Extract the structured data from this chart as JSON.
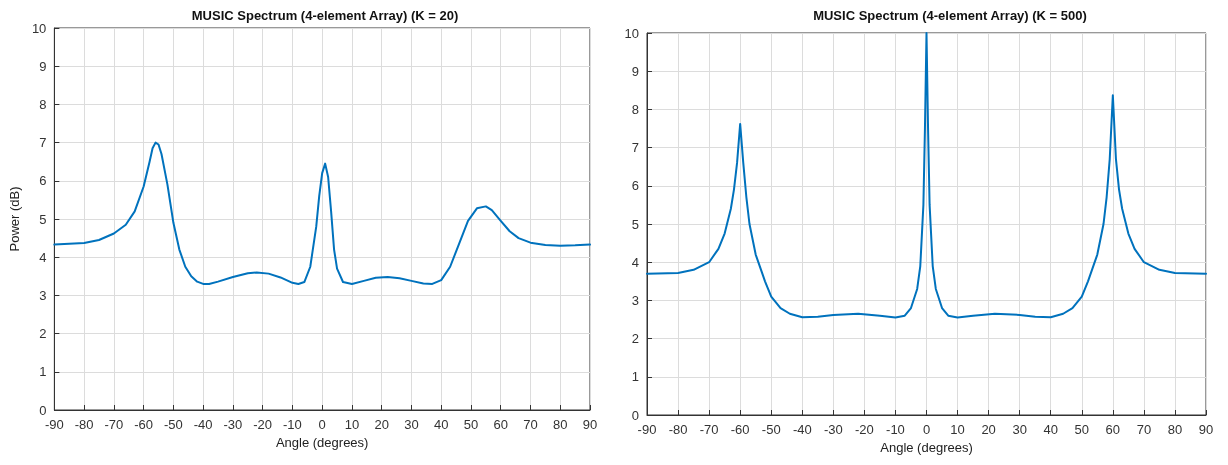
{
  "chart_data": [
    {
      "type": "line",
      "title": "MUSIC Spectrum (4-element Array) (K = 20)",
      "xlabel": "Angle (degrees)",
      "ylabel": "Power (dB)",
      "xlim": [
        -90,
        90
      ],
      "xticks": [
        -90,
        -80,
        -70,
        -60,
        -50,
        -40,
        -30,
        -20,
        -10,
        0,
        10,
        20,
        30,
        40,
        50,
        60,
        70,
        80,
        90
      ],
      "ylim": [
        0,
        10
      ],
      "yticks": [
        0,
        1,
        2,
        3,
        4,
        5,
        6,
        7,
        8,
        9,
        10
      ],
      "grid": true,
      "series": [
        {
          "color": "#0072bd",
          "x": [
            -90,
            -80,
            -75,
            -70,
            -66,
            -63,
            -60,
            -58,
            -57,
            -56,
            -55,
            -54,
            -52,
            -50,
            -48,
            -46,
            -44,
            -42,
            -40,
            -38,
            -35,
            -30,
            -25,
            -22,
            -18,
            -14,
            -10,
            -8,
            -6,
            -4,
            -2,
            -1,
            0,
            1,
            2,
            3,
            4,
            5,
            7,
            10,
            14,
            18,
            22,
            26,
            30,
            34,
            37,
            40,
            43,
            46,
            49,
            52,
            55,
            57,
            60,
            63,
            66,
            70,
            75,
            80,
            85,
            90
          ],
          "values": [
            4.33,
            4.37,
            4.45,
            4.62,
            4.85,
            5.2,
            5.85,
            6.5,
            6.85,
            7.0,
            6.95,
            6.7,
            5.9,
            4.9,
            4.2,
            3.75,
            3.5,
            3.36,
            3.3,
            3.3,
            3.36,
            3.48,
            3.58,
            3.6,
            3.57,
            3.47,
            3.33,
            3.3,
            3.35,
            3.75,
            4.8,
            5.6,
            6.2,
            6.45,
            6.1,
            5.2,
            4.2,
            3.7,
            3.35,
            3.3,
            3.38,
            3.46,
            3.48,
            3.45,
            3.38,
            3.31,
            3.3,
            3.4,
            3.75,
            4.35,
            4.95,
            5.28,
            5.33,
            5.23,
            4.95,
            4.68,
            4.5,
            4.38,
            4.32,
            4.3,
            4.31,
            4.33
          ]
        }
      ]
    },
    {
      "type": "line",
      "title": "MUSIC Spectrum (4-element Array) (K = 500)",
      "xlabel": "Angle (degrees)",
      "xlim": [
        -90,
        90
      ],
      "xticks": [
        -90,
        -80,
        -70,
        -60,
        -50,
        -40,
        -30,
        -20,
        -10,
        0,
        10,
        20,
        30,
        40,
        50,
        60,
        70,
        80,
        90
      ],
      "ylim": [
        0,
        10
      ],
      "yticks": [
        0,
        1,
        2,
        3,
        4,
        5,
        6,
        7,
        8,
        9,
        10
      ],
      "grid": true,
      "series": [
        {
          "color": "#0072bd",
          "x": [
            -90,
            -80,
            -75,
            -70,
            -67,
            -65,
            -63,
            -62,
            -61,
            -60,
            -59,
            -58,
            -57,
            -55,
            -52,
            -50,
            -47,
            -44,
            -40,
            -35,
            -30,
            -22,
            -15,
            -10,
            -7,
            -5,
            -3,
            -2,
            -1,
            -0.5,
            0,
            0.5,
            1,
            2,
            3,
            5,
            7,
            10,
            15,
            22,
            30,
            35,
            40,
            44,
            47,
            50,
            52,
            55,
            57,
            58,
            59,
            60,
            61,
            62,
            63,
            65,
            67,
            70,
            75,
            80,
            90
          ],
          "values": [
            3.7,
            3.72,
            3.8,
            4.0,
            4.35,
            4.75,
            5.4,
            5.9,
            6.6,
            7.62,
            6.6,
            5.7,
            5.0,
            4.2,
            3.5,
            3.1,
            2.8,
            2.65,
            2.56,
            2.57,
            2.62,
            2.65,
            2.6,
            2.55,
            2.6,
            2.8,
            3.3,
            3.9,
            5.5,
            7.5,
            10,
            7.5,
            5.5,
            3.9,
            3.3,
            2.8,
            2.6,
            2.55,
            2.6,
            2.65,
            2.62,
            2.57,
            2.56,
            2.65,
            2.8,
            3.1,
            3.5,
            4.2,
            5.0,
            5.7,
            6.7,
            8.37,
            6.7,
            5.9,
            5.4,
            4.75,
            4.35,
            4.0,
            3.8,
            3.72,
            3.7
          ]
        }
      ]
    }
  ]
}
